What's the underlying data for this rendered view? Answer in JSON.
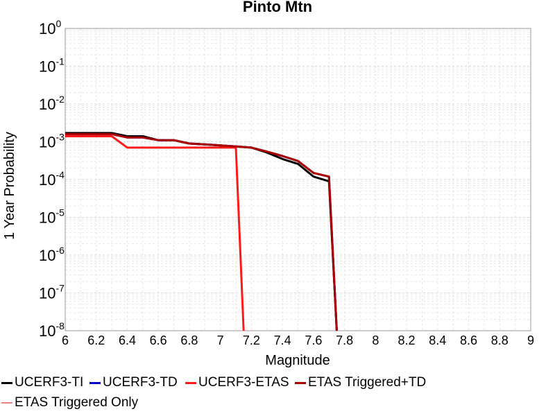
{
  "chart_data": {
    "type": "line",
    "title": "Pinto Mtn",
    "xlabel": "Magnitude",
    "ylabel": "1 Year Probability",
    "xlim": [
      6,
      9
    ],
    "ylim": [
      1e-08,
      1
    ],
    "yscale": "log",
    "grid": true,
    "legend_position": "bottom",
    "x_ticks": [
      "6",
      "6.2",
      "6.4",
      "6.6",
      "6.8",
      "7",
      "7.2",
      "7.4",
      "7.6",
      "7.8",
      "8",
      "8.2",
      "8.4",
      "8.6",
      "8.8",
      "9"
    ],
    "y_ticks": [
      {
        "base": "10",
        "exp": "0"
      },
      {
        "base": "10",
        "exp": "-1"
      },
      {
        "base": "10",
        "exp": "-2"
      },
      {
        "base": "10",
        "exp": "-3"
      },
      {
        "base": "10",
        "exp": "-4"
      },
      {
        "base": "10",
        "exp": "-5"
      },
      {
        "base": "10",
        "exp": "-6"
      },
      {
        "base": "10",
        "exp": "-7"
      },
      {
        "base": "10",
        "exp": "-8"
      }
    ],
    "series": [
      {
        "name": "UCERF3-TI",
        "color": "#000000",
        "width": 3,
        "x": [
          6.0,
          6.1,
          6.2,
          6.3,
          6.4,
          6.5,
          6.6,
          6.7,
          6.8,
          6.9,
          7.0,
          7.1,
          7.2,
          7.3,
          7.4,
          7.5,
          7.6,
          7.7,
          7.75
        ],
        "y": [
          0.0017,
          0.0017,
          0.0017,
          0.0017,
          0.0014,
          0.0014,
          0.0011,
          0.0011,
          0.0009,
          0.00085,
          0.0008,
          0.00075,
          0.0007,
          0.00052,
          0.00035,
          0.00026,
          0.00012,
          9e-05,
          1e-08
        ]
      },
      {
        "name": "UCERF3-TD",
        "color": "#0000cc",
        "width": 3,
        "x": [
          6.0,
          6.1,
          6.2,
          6.3,
          6.4,
          6.5,
          6.6,
          6.7,
          6.8,
          6.9,
          7.0,
          7.1,
          7.2,
          7.3,
          7.4,
          7.5,
          7.6,
          7.7,
          7.75
        ],
        "y": [
          0.0016,
          0.0016,
          0.0016,
          0.0016,
          0.0013,
          0.0013,
          0.0011,
          0.0011,
          0.0009,
          0.00085,
          0.0008,
          0.00075,
          0.0007,
          0.00055,
          0.00042,
          0.00031,
          0.00015,
          0.00012,
          1e-08
        ]
      },
      {
        "name": "UCERF3-ETAS",
        "color": "#ff1a1a",
        "width": 3,
        "x": [
          6.0,
          6.1,
          6.2,
          6.3,
          6.4,
          6.5,
          6.6,
          6.7,
          6.8,
          6.9,
          7.0,
          7.1,
          7.15
        ],
        "y": [
          0.0014,
          0.0014,
          0.0014,
          0.0014,
          0.0007,
          0.0007,
          0.0007,
          0.0007,
          0.0007,
          0.0007,
          0.0007,
          0.0007,
          1e-08
        ]
      },
      {
        "name": "ETAS Triggered+TD",
        "color": "#aa0000",
        "width": 3,
        "x": [
          6.0,
          6.1,
          6.2,
          6.3,
          6.4,
          6.5,
          6.6,
          6.7,
          6.8,
          6.9,
          7.0,
          7.1,
          7.2,
          7.3,
          7.4,
          7.5,
          7.6,
          7.7,
          7.75
        ],
        "y": [
          0.0016,
          0.0016,
          0.0016,
          0.0016,
          0.0013,
          0.0013,
          0.0011,
          0.0011,
          0.0009,
          0.00085,
          0.0008,
          0.00075,
          0.0007,
          0.00055,
          0.00042,
          0.00031,
          0.00015,
          0.00012,
          1e-08
        ]
      },
      {
        "name": "ETAS Triggered Only",
        "color": "#f08080",
        "width": 1.5,
        "x": [],
        "y": []
      }
    ]
  }
}
